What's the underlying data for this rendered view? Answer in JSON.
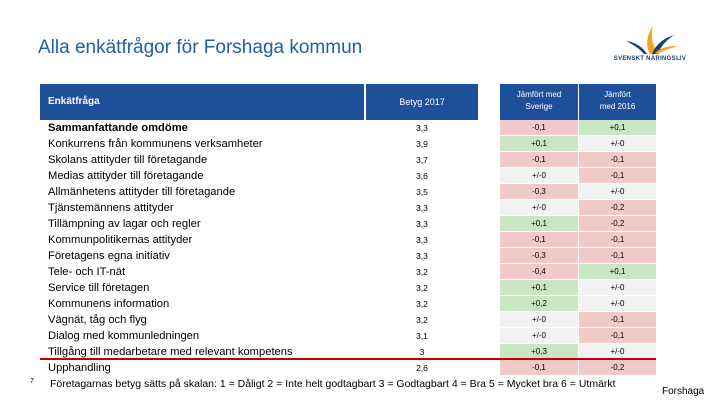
{
  "title": "Alla enkätfrågor för Forshaga kommun",
  "logo_text": "SVENSKT NÄRINGSLIV",
  "colors": {
    "title": "#1f5fa8",
    "header_bg": "#1e4f9a",
    "positive": "#cbe6c2",
    "negative": "#f2c9c9",
    "neutral": "#f2f2f2",
    "separator": "#c00000"
  },
  "headers": {
    "question": "Enkätfråga",
    "rating": "Betyg 2017",
    "vs_sweden_line1": "Jämfört med",
    "vs_sweden_line2": "Sverige",
    "vs_2016_line1": "Jämfört",
    "vs_2016_line2": "med 2016"
  },
  "rows": [
    {
      "label": "Sammanfattande omdöme",
      "rating": "3,3",
      "vs_sweden": "-0,1",
      "vs_2016": "+0,1"
    },
    {
      "label": "Konkurrens från kommunens verksamheter",
      "rating": "3,9",
      "vs_sweden": "+0,1",
      "vs_2016": "+/-0"
    },
    {
      "label": "Skolans attityder till företagande",
      "rating": "3,7",
      "vs_sweden": "-0,1",
      "vs_2016": "-0,1"
    },
    {
      "label": "Medias attityder till företagande",
      "rating": "3,6",
      "vs_sweden": "+/-0",
      "vs_2016": "-0,1"
    },
    {
      "label": "Allmänhetens attityder till företagande",
      "rating": "3,5",
      "vs_sweden": "-0,3",
      "vs_2016": "+/-0"
    },
    {
      "label": "Tjänstemännens attityder",
      "rating": "3,3",
      "vs_sweden": "+/-0",
      "vs_2016": "-0,2"
    },
    {
      "label": "Tillämpning av lagar och regler",
      "rating": "3,3",
      "vs_sweden": "+0,1",
      "vs_2016": "-0,2"
    },
    {
      "label": "Kommunpolitikernas attityder",
      "rating": "3,3",
      "vs_sweden": "-0,1",
      "vs_2016": "-0,1"
    },
    {
      "label": "Företagens egna initiativ",
      "rating": "3,3",
      "vs_sweden": "-0,3",
      "vs_2016": "-0,1"
    },
    {
      "label": "Tele- och IT-nät",
      "rating": "3,2",
      "vs_sweden": "-0,4",
      "vs_2016": "+0,1"
    },
    {
      "label": "Service till företagen",
      "rating": "3,2",
      "vs_sweden": "+0,1",
      "vs_2016": "+/-0"
    },
    {
      "label": "Kommunens information",
      "rating": "3,2",
      "vs_sweden": "+0,2",
      "vs_2016": "+/-0"
    },
    {
      "label": "Vägnät, tåg och flyg",
      "rating": "3,2",
      "vs_sweden": "+/-0",
      "vs_2016": "-0,1"
    },
    {
      "label": "Dialog med kommunledningen",
      "rating": "3,1",
      "vs_sweden": "+/-0",
      "vs_2016": "-0,1"
    },
    {
      "label": "Tillgång till medarbetare med relevant kompetens",
      "rating": "3",
      "vs_sweden": "+0,3",
      "vs_2016": "+/-0"
    },
    {
      "label": "Upphandling",
      "rating": "2,6",
      "vs_sweden": "-0,1",
      "vs_2016": "-0,2"
    }
  ],
  "slide_number": "7",
  "footnote": "Företagarnas betyg sätts på skalan: 1 = Dåligt 2 = Inte helt godtagbart 3 = Godtagbart 4 = Bra 5 = Mycket bra 6 = Utmärkt",
  "corner_label": "Forshaga"
}
